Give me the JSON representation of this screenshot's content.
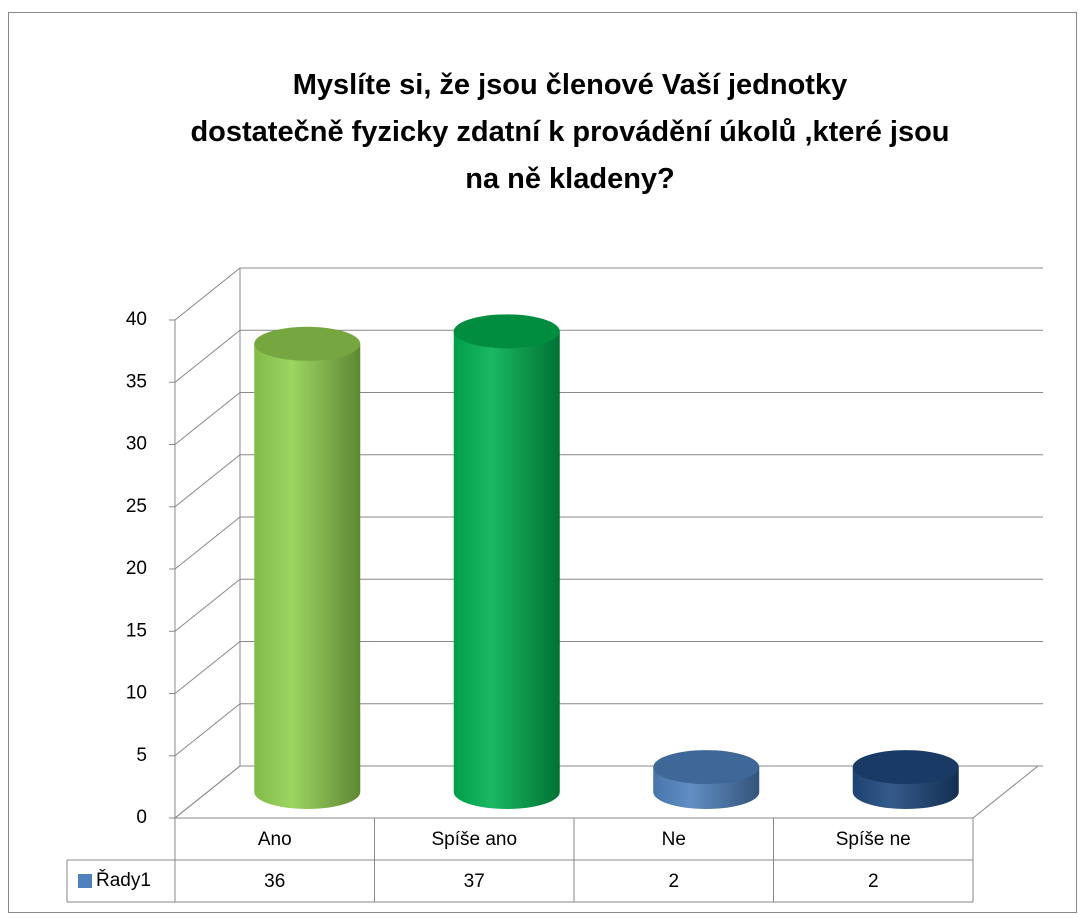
{
  "chart_data": {
    "type": "bar3d",
    "title": "Myslíte si, že jsou členové Vaší jednotky dostatečně fyzicky zdatní k provádění úkolů ,které jsou na ně kladeny?",
    "categories": [
      "Ano",
      "Spíše ano",
      "Ne",
      "Spíše ne"
    ],
    "series": [
      {
        "name": "Řady1",
        "color": "#4f81bd",
        "values": [
          36,
          37,
          2,
          2
        ]
      }
    ],
    "point_colors": [
      "#92d050",
      "#00b050",
      "#4f81bd",
      "#1f497d"
    ],
    "ylim": [
      0,
      40
    ],
    "yticks": [
      0,
      5,
      10,
      15,
      20,
      25,
      30,
      35,
      40
    ],
    "grid": true,
    "data_table": true
  }
}
